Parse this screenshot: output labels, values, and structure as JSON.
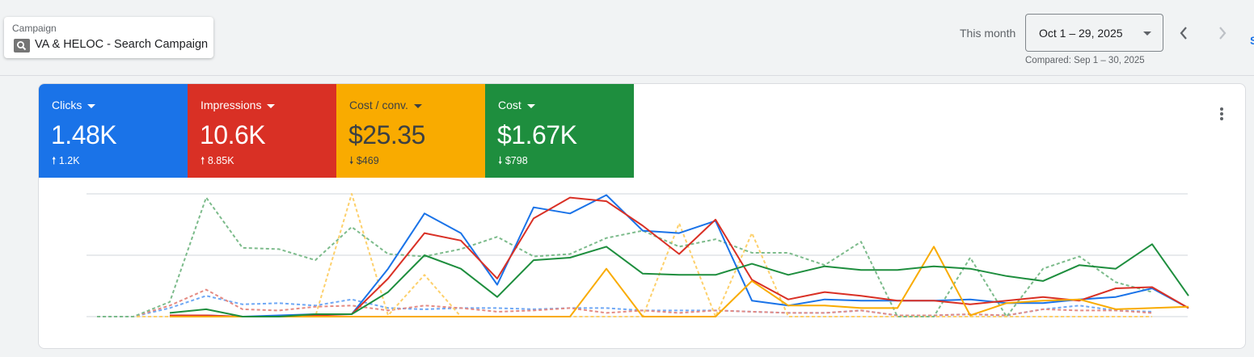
{
  "campaign": {
    "label": "Campaign",
    "name": "VA & HELOC - Search Campaign",
    "icon": "search-icon"
  },
  "date": {
    "period_label": "This month",
    "range": "Oct 1 – 29, 2025",
    "compared": "Compared: Sep 1 – 30, 2025",
    "prev_icon": "chevron-left-icon",
    "next_icon": "chevron-right-icon"
  },
  "cut_link": "S",
  "metrics": [
    {
      "label": "Clicks",
      "value": "1.48K",
      "delta_dir": "up",
      "delta": "1.2K",
      "color": "#1a73e8",
      "text_color": "#ffffff"
    },
    {
      "label": "Impressions",
      "value": "10.6K",
      "delta_dir": "up",
      "delta": "8.85K",
      "color": "#d93025",
      "text_color": "#ffffff"
    },
    {
      "label": "Cost / conv.",
      "value": "$25.35",
      "delta_dir": "down",
      "delta": "$469",
      "color": "#f9ab00",
      "text_color": "#3c4043"
    },
    {
      "label": "Cost",
      "value": "$1.67K",
      "delta_dir": "down",
      "delta": "$798",
      "color": "#1e8e3e",
      "text_color": "#ffffff"
    }
  ],
  "chart_data": {
    "type": "line",
    "title": "",
    "xlabel": "",
    "ylabel": "",
    "ylim": [
      0,
      100
    ],
    "grid": true,
    "legend": "none",
    "note_units": "normalized per metric, top gridline = 100",
    "series": [
      {
        "metric": "Clicks",
        "period": "current",
        "style": "solid",
        "color": "#1a73e8",
        "start_index": 2,
        "values": [
          1,
          1,
          0,
          1,
          2,
          2,
          39,
          84,
          68,
          26,
          89,
          84,
          99,
          70,
          68,
          78,
          13,
          9,
          14,
          13,
          13,
          13,
          14,
          11,
          11,
          14,
          16,
          23,
          7
        ]
      },
      {
        "metric": "Impressions",
        "period": "current",
        "style": "solid",
        "color": "#d93025",
        "start_index": 2,
        "values": [
          1,
          1,
          0,
          0,
          1,
          2,
          31,
          68,
          62,
          31,
          80,
          97,
          94,
          74,
          51,
          79,
          30,
          14,
          20,
          17,
          13,
          13,
          10,
          13,
          16,
          13,
          23,
          24,
          7
        ]
      },
      {
        "metric": "Cost / conv.",
        "period": "current",
        "style": "solid",
        "color": "#f9ab00",
        "start_index": 2,
        "values": [
          0,
          0,
          0,
          0,
          0,
          0,
          0,
          0,
          0,
          0,
          0,
          0,
          39,
          0,
          0,
          0,
          29,
          9,
          9,
          7,
          7,
          57,
          1,
          11,
          13,
          14,
          6,
          7,
          8
        ]
      },
      {
        "metric": "Cost",
        "period": "current",
        "style": "solid",
        "color": "#1e8e3e",
        "start_index": 2,
        "values": [
          3,
          6,
          0,
          0,
          2,
          2,
          20,
          50,
          39,
          16,
          46,
          48,
          57,
          35,
          34,
          34,
          43,
          34,
          41,
          38,
          38,
          41,
          39,
          33,
          29,
          42,
          39,
          59,
          17
        ]
      },
      {
        "metric": "Clicks",
        "period": "compared",
        "style": "dashed",
        "color": "#6fa8f5",
        "start_index": 0,
        "values": [
          0,
          0,
          7,
          17,
          10,
          11,
          9,
          14,
          7,
          6,
          7,
          7,
          6,
          7,
          7,
          5,
          5,
          5,
          4,
          3,
          3,
          5,
          1,
          1,
          2,
          1,
          6,
          9,
          5,
          4
        ]
      },
      {
        "metric": "Impressions",
        "period": "compared",
        "style": "dashed",
        "color": "#e58a82",
        "start_index": 0,
        "values": [
          0,
          0,
          9,
          22,
          6,
          5,
          8,
          9,
          5,
          9,
          7,
          4,
          5,
          7,
          3,
          5,
          3,
          5,
          4,
          3,
          3,
          5,
          1,
          1,
          2,
          1,
          6,
          5,
          5,
          3
        ]
      },
      {
        "metric": "Cost / conv.",
        "period": "compared",
        "style": "dashed",
        "color": "#fdd06b",
        "start_index": 0,
        "values": [
          0,
          0,
          0,
          0,
          0,
          0,
          0,
          100,
          1,
          34,
          0,
          0,
          0,
          0,
          0,
          0,
          76,
          0,
          68,
          0,
          0,
          0,
          0,
          0,
          0,
          0,
          0,
          0,
          0,
          0
        ]
      },
      {
        "metric": "Cost",
        "period": "compared",
        "style": "dashed",
        "color": "#7cbb8b",
        "start_index": 0,
        "values": [
          0,
          0,
          12,
          97,
          56,
          55,
          46,
          73,
          51,
          49,
          55,
          65,
          49,
          51,
          64,
          70,
          57,
          63,
          52,
          52,
          42,
          61,
          0,
          0,
          48,
          0,
          39,
          49,
          28,
          20
        ]
      }
    ]
  }
}
